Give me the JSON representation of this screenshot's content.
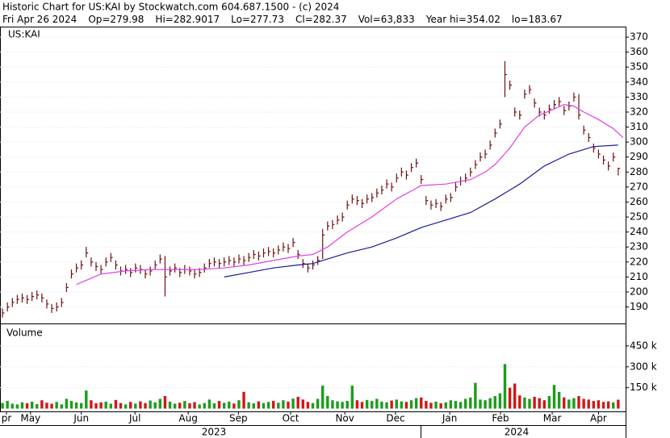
{
  "chart_data": {
    "type": "ohlc",
    "title": "Historic Chart for US:KAI by Stockwatch.com 604.687.1500 - (c) 2024",
    "info": [
      "Fri Apr 26 2024",
      "Op=279.98",
      "Hi=282.9017",
      "Lo=277.73",
      "Cl=282.37",
      "Vol=63,833",
      "Year hi=354.02",
      "lo=183.67"
    ],
    "symbol": "US:KAI",
    "volume_label": "Volume",
    "bar_color": "#6e1010",
    "up_color": "#1e9c1e",
    "down_color": "#d01818",
    "grid": true,
    "xlim": [
      -0.5,
      126.5
    ],
    "xticks": [
      {
        "value": 0,
        "label": "pr"
      },
      {
        "value": 5.7,
        "label": "May"
      },
      {
        "value": 16,
        "label": "Jun"
      },
      {
        "value": 26.9,
        "label": "Jul"
      },
      {
        "value": 37.7,
        "label": "Aug"
      },
      {
        "value": 47.9,
        "label": "Sep"
      },
      {
        "value": 58.5,
        "label": "Oct"
      },
      {
        "value": 69.5,
        "label": "Nov"
      },
      {
        "value": 79.8,
        "label": "Dec"
      },
      {
        "value": 90.8,
        "label": "Jan"
      },
      {
        "value": 101.1,
        "label": "Feb"
      },
      {
        "value": 111.6,
        "label": "Mar"
      },
      {
        "value": 121,
        "label": "Apr"
      }
    ],
    "years": [
      "2023",
      "2024"
    ],
    "ylim": [
      179,
      377
    ],
    "yticks": [
      190,
      200,
      210,
      220,
      230,
      240,
      250,
      260,
      270,
      280,
      290,
      300,
      310,
      320,
      330,
      340,
      350,
      360,
      370
    ],
    "high": [
      189,
      193,
      196,
      198,
      199,
      198,
      200,
      201,
      199,
      195,
      192,
      193,
      196,
      206,
      215,
      219,
      221,
      230,
      223,
      220,
      218,
      223,
      226,
      221,
      217,
      218,
      216,
      219,
      218,
      215,
      217,
      221,
      225,
      224,
      217,
      219,
      216,
      218,
      217,
      215,
      216,
      219,
      222,
      223,
      222,
      223,
      224,
      223,
      225,
      224,
      226,
      228,
      227,
      229,
      230,
      229,
      231,
      233,
      232,
      236,
      228,
      222,
      219,
      221,
      224,
      242,
      247,
      248,
      251,
      253,
      261,
      265,
      264,
      262,
      265,
      266,
      269,
      271,
      275,
      273,
      279,
      283,
      281,
      286,
      289,
      278,
      264,
      261,
      262,
      260,
      265,
      266,
      273,
      277,
      279,
      283,
      288,
      293,
      295,
      301,
      309,
      315,
      354,
      341,
      323,
      321,
      335,
      338,
      329,
      323,
      321,
      325,
      328,
      330,
      324,
      327,
      333,
      332,
      311,
      306,
      299,
      295,
      291,
      287,
      293,
      282.9
    ],
    "low": [
      183,
      187,
      190,
      192,
      193,
      192,
      194,
      195,
      193,
      189,
      186,
      187,
      190,
      200,
      209,
      213,
      215,
      223,
      217,
      214,
      212,
      217,
      220,
      215,
      211,
      212,
      210,
      213,
      212,
      209,
      211,
      215,
      219,
      197,
      211,
      213,
      210,
      212,
      211,
      209,
      210,
      213,
      216,
      217,
      216,
      217,
      218,
      217,
      219,
      218,
      220,
      222,
      221,
      223,
      224,
      223,
      225,
      227,
      226,
      230,
      222,
      216,
      213,
      215,
      218,
      222,
      241,
      242,
      245,
      247,
      255,
      259,
      258,
      256,
      259,
      260,
      263,
      265,
      269,
      267,
      273,
      277,
      275,
      280,
      283,
      272,
      258,
      255,
      256,
      254,
      259,
      260,
      267,
      271,
      273,
      277,
      282,
      287,
      289,
      295,
      303,
      309,
      330,
      335,
      317,
      315,
      329,
      332,
      323,
      317,
      315,
      319,
      322,
      324,
      318,
      321,
      327,
      315,
      305,
      300,
      293,
      289,
      285,
      281,
      287,
      277.73
    ],
    "close": [
      186,
      190,
      193,
      195,
      196,
      195,
      197,
      198,
      196,
      192,
      189,
      190,
      193,
      203,
      212,
      216,
      218,
      226,
      220,
      217,
      215,
      220,
      223,
      218,
      214,
      215,
      213,
      216,
      215,
      212,
      214,
      218,
      222,
      210,
      214,
      216,
      213,
      215,
      214,
      212,
      213,
      216,
      219,
      220,
      219,
      220,
      221,
      220,
      222,
      221,
      223,
      225,
      224,
      226,
      227,
      226,
      228,
      230,
      229,
      233,
      225,
      219,
      216,
      218,
      221,
      238,
      244,
      245,
      248,
      250,
      258,
      262,
      261,
      259,
      262,
      263,
      266,
      268,
      272,
      270,
      276,
      280,
      278,
      283,
      286,
      275,
      261,
      258,
      259,
      257,
      262,
      263,
      270,
      274,
      276,
      280,
      285,
      290,
      292,
      298,
      306,
      312,
      345,
      338,
      320,
      318,
      332,
      335,
      326,
      320,
      318,
      322,
      325,
      327,
      321,
      324,
      330,
      318,
      308,
      303,
      296,
      292,
      288,
      284,
      290,
      282.37
    ],
    "moving_averages": [
      {
        "color": "#e040e0",
        "x": [
          15,
          20,
          25,
          30,
          35,
          40,
          45,
          50,
          55,
          60,
          63,
          66,
          70,
          75,
          80,
          85,
          90,
          95,
          98,
          100,
          103,
          106,
          109,
          112,
          114,
          116,
          118,
          121,
          124,
          126
        ],
        "values": [
          205,
          212,
          214,
          215,
          215,
          215,
          216,
          218,
          221,
          224,
          225,
          230,
          240,
          250,
          262,
          271,
          272,
          275,
          280,
          285,
          296,
          310,
          318,
          322,
          325,
          324,
          320,
          315,
          309,
          303
        ]
      },
      {
        "color": "#1a1a9c",
        "x": [
          45,
          50,
          55,
          60,
          63,
          66,
          70,
          75,
          80,
          85,
          90,
          95,
          100,
          105,
          110,
          115,
          120,
          125
        ],
        "values": [
          210,
          213,
          216,
          218,
          219,
          222,
          226,
          230,
          236,
          243,
          248,
          253,
          262,
          272,
          284,
          292,
          297,
          298
        ]
      }
    ],
    "volume": {
      "ylim": [
        -20000,
        600000
      ],
      "yticks": [
        {
          "value": 150000,
          "label": "150 k"
        },
        {
          "value": 300000,
          "label": "300 k"
        },
        {
          "value": 450000,
          "label": "450 k"
        }
      ],
      "values": [
        40000,
        55000,
        35000,
        30000,
        45000,
        38000,
        50000,
        32000,
        60000,
        42000,
        35000,
        48000,
        30000,
        70000,
        55000,
        45000,
        40000,
        130000,
        60000,
        38000,
        45000,
        50000,
        35000,
        62000,
        40000,
        30000,
        48000,
        36000,
        52000,
        40000,
        58000,
        45000,
        70000,
        90000,
        50000,
        35000,
        42000,
        55000,
        38000,
        47000,
        30000,
        40000,
        65000,
        38000,
        55000,
        42000,
        50000,
        36000,
        60000,
        120000,
        45000,
        38000,
        52000,
        40000,
        48000,
        56000,
        42000,
        60000,
        50000,
        72000,
        85000,
        65000,
        48000,
        40000,
        70000,
        165000,
        90000,
        60000,
        52000,
        48000,
        55000,
        165000,
        60000,
        48000,
        62000,
        55000,
        70000,
        50000,
        45000,
        58000,
        65000,
        52000,
        48000,
        60000,
        75000,
        80000,
        55000,
        42000,
        50000,
        38000,
        45000,
        60000,
        55000,
        48000,
        70000,
        80000,
        185000,
        65000,
        60000,
        75000,
        90000,
        110000,
        320000,
        150000,
        180000,
        95000,
        80000,
        70000,
        85000,
        75000,
        60000,
        90000,
        170000,
        120000,
        80000,
        65000,
        75000,
        90000,
        70000,
        65000,
        55000,
        60000,
        48000,
        52000,
        45000,
        63833
      ]
    }
  }
}
